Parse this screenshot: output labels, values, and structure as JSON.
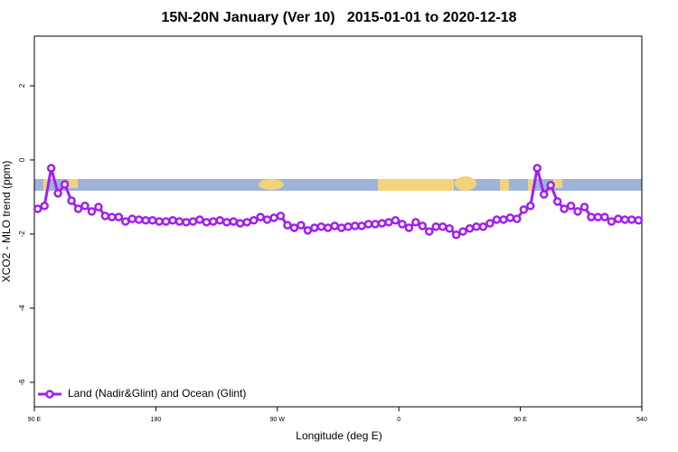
{
  "chart_data": {
    "type": "line",
    "title": "15N-20N January (Ver 10)   2015-01-01 to 2020-12-18",
    "x_label": "Longitude (deg E)",
    "y_label": "XCO2 - MLO trend (ppm)",
    "x": [
      92.5,
      97.5,
      102.5,
      107.5,
      112.5,
      117.5,
      122.5,
      127.5,
      132.5,
      137.5,
      142.5,
      147.5,
      152.5,
      157.5,
      162.5,
      167.5,
      172.5,
      177.5,
      182.5,
      187.5,
      192.5,
      197.5,
      202.5,
      207.5,
      212.5,
      217.5,
      222.5,
      227.5,
      232.5,
      237.5,
      242.5,
      247.5,
      252.5,
      257.5,
      262.5,
      267.5,
      272.5,
      277.5,
      282.5,
      287.5,
      292.5,
      297.5,
      302.5,
      307.5,
      312.5,
      317.5,
      322.5,
      327.5,
      332.5,
      337.5,
      342.5,
      347.5,
      352.5,
      357.5,
      362.5,
      367.5,
      372.5,
      377.5,
      382.5,
      387.5,
      392.5,
      397.5,
      402.5,
      407.5,
      412.5,
      417.5,
      422.5,
      427.5,
      432.5,
      437.5,
      442.5,
      447.5,
      452.5,
      457.5,
      462.5,
      467.5,
      472.5,
      477.5,
      482.5,
      487.5,
      492.5,
      497.5,
      502.5,
      507.5,
      512.5,
      517.5,
      522.5,
      527.5,
      532.5,
      537.5
    ],
    "series": [
      {
        "name": "Land (Nadir&Glint) and Ocean (Glint)",
        "color": "#a020f0",
        "values": [
          -1.32,
          -1.24,
          -0.22,
          -0.9,
          -0.66,
          -1.1,
          -1.32,
          -1.24,
          -1.39,
          -1.27,
          -1.51,
          -1.54,
          -1.54,
          -1.66,
          -1.59,
          -1.61,
          -1.63,
          -1.63,
          -1.66,
          -1.66,
          -1.63,
          -1.66,
          -1.68,
          -1.66,
          -1.61,
          -1.68,
          -1.66,
          -1.63,
          -1.68,
          -1.66,
          -1.71,
          -1.68,
          -1.63,
          -1.54,
          -1.61,
          -1.56,
          -1.51,
          -1.76,
          -1.83,
          -1.76,
          -1.9,
          -1.83,
          -1.8,
          -1.83,
          -1.78,
          -1.83,
          -1.8,
          -1.78,
          -1.78,
          -1.73,
          -1.73,
          -1.71,
          -1.68,
          -1.63,
          -1.73,
          -1.83,
          -1.68,
          -1.78,
          -1.93,
          -1.8,
          -1.8,
          -1.85,
          -2.02,
          -1.93,
          -1.85,
          -1.8,
          -1.8,
          -1.71,
          -1.61,
          -1.61,
          -1.56,
          -1.59,
          -1.34,
          -1.24,
          -0.22,
          -0.93,
          -0.68,
          -1.12,
          -1.32,
          -1.24,
          -1.39,
          -1.27,
          -1.54,
          -1.54,
          -1.54,
          -1.66,
          -1.59,
          -1.61,
          -1.61,
          -1.63
        ]
      }
    ],
    "xlim": [
      90,
      540
    ],
    "xticks": [
      {
        "value": 90,
        "label": "90 E"
      },
      180,
      {
        "value": 270,
        "label": "90 W"
      },
      {
        "value": 360,
        "label": "0"
      },
      {
        "value": 450,
        "label": "90 E"
      },
      540
    ],
    "ylim": [
      -6.66,
      3.34
    ],
    "yticks": [
      -6,
      -4,
      -2,
      0,
      2
    ],
    "legend": "bottom-left"
  }
}
